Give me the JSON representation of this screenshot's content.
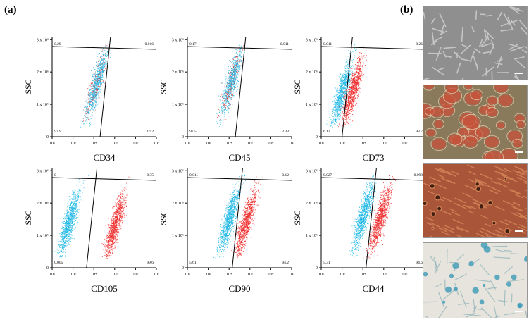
{
  "panel_a_label": "(a)",
  "panel_b_label": "(b)",
  "y_label": "SSC",
  "y_ticks": [
    "3 x 10⁶",
    "2 x 10⁶",
    "1 x 10⁶",
    "0"
  ],
  "x_ticks": [
    "10²",
    "10³",
    "10⁴",
    "10⁵",
    "10⁶",
    "10⁷"
  ],
  "colors": {
    "negative": "#1fb8e6",
    "positive": "#ee2b2b",
    "overlap": "#8a7a88"
  },
  "chart_data": [
    {
      "type": "scatter",
      "marker": "CD34",
      "quadrants": {
        "ul": "0.29",
        "ur": "0.016",
        "ll": "97.9",
        "lr": "1.92"
      },
      "populations": [
        {
          "color": "mixed",
          "x_log_center": 4.1,
          "y_center": 1.6
        }
      ]
    },
    {
      "type": "scatter",
      "marker": "CD45",
      "quadrants": {
        "ul": "0.17",
        "ur": "0.011",
        "ll": "97.5",
        "lr": "2.33"
      },
      "populations": [
        {
          "color": "mixed",
          "x_log_center": 4.1,
          "y_center": 1.7
        }
      ]
    },
    {
      "type": "scatter",
      "marker": "CD73",
      "quadrants": {
        "ul": "0.011",
        "ur": "0.26",
        "ll": "6.13",
        "lr": "93.7"
      },
      "populations": [
        {
          "color": "negative",
          "x_log_center": 3.0,
          "y_center": 1.4
        },
        {
          "color": "positive",
          "x_log_center": 3.5,
          "y_center": 1.4
        }
      ]
    },
    {
      "type": "scatter",
      "marker": "CD105",
      "quadrants": {
        "ul": "0",
        "ur": "0.35",
        "ll": "0.005",
        "lr": "99.6"
      },
      "populations": [
        {
          "color": "negative",
          "x_log_center": 2.8,
          "y_center": 1.4
        },
        {
          "color": "positive",
          "x_log_center": 5.0,
          "y_center": 1.3
        }
      ]
    },
    {
      "type": "scatter",
      "marker": "CD90",
      "quadrants": {
        "ul": "0.011",
        "ur": "0.12",
        "ll": "5.61",
        "lr": "94.2"
      },
      "populations": [
        {
          "color": "negative",
          "x_log_center": 4.0,
          "y_center": 1.5
        },
        {
          "color": "positive",
          "x_log_center": 4.8,
          "y_center": 1.4
        }
      ]
    },
    {
      "type": "scatter",
      "marker": "CD44",
      "quadrants": {
        "ul": "0.027",
        "ur": "0.098",
        "ll": "5.31",
        "lr": "94.6"
      },
      "populations": [
        {
          "color": "negative",
          "x_log_center": 4.0,
          "y_center": 1.6
        },
        {
          "color": "positive",
          "x_log_center": 4.8,
          "y_center": 1.5
        }
      ]
    }
  ]
}
